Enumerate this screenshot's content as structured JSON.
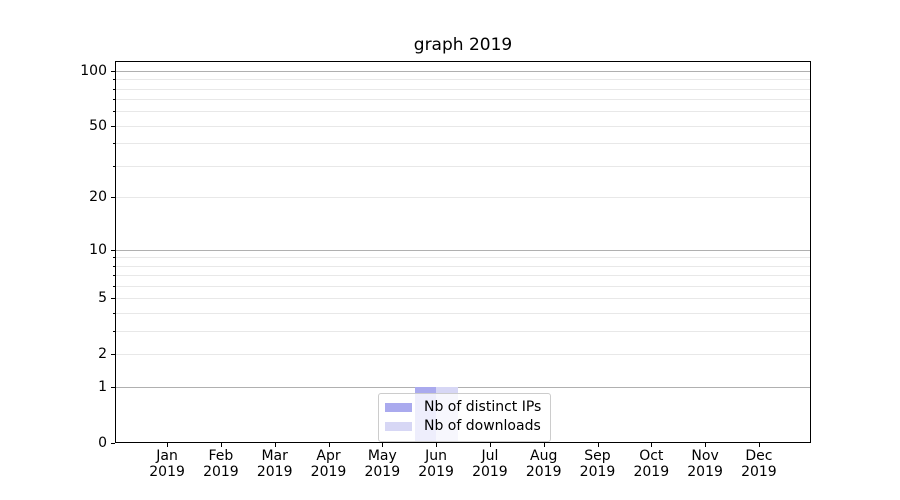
{
  "chart_data": {
    "type": "bar",
    "title": "graph 2019",
    "categories": [
      "Jan 2019",
      "Feb 2019",
      "Mar 2019",
      "Apr 2019",
      "May 2019",
      "Jun 2019",
      "Jul 2019",
      "Aug 2019",
      "Sep 2019",
      "Oct 2019",
      "Nov 2019",
      "Dec 2019"
    ],
    "series": [
      {
        "name": "Nb of distinct IPs",
        "color": "#aaaaee",
        "values": [
          0,
          0,
          0,
          0,
          0,
          1,
          0,
          0,
          0,
          0,
          0,
          0
        ]
      },
      {
        "name": "Nb of downloads",
        "color": "#d7d7f5",
        "values": [
          0,
          0,
          0,
          0,
          0,
          1,
          0,
          0,
          0,
          0,
          0,
          0
        ]
      }
    ],
    "xlabel": "",
    "ylabel": "",
    "yscale": "log1p",
    "ylim": [
      0,
      113
    ],
    "yticks": [
      0,
      1,
      2,
      5,
      10,
      20,
      50,
      100
    ],
    "grid": {
      "horizontal": true,
      "vertical": false,
      "major_lines": [
        1,
        10,
        100
      ],
      "minor_line_decades": [
        1,
        10
      ],
      "major_color": "#b0b0b0",
      "minor_color": "#e8e8e8"
    },
    "legend_position": "lower center",
    "colors": {
      "axis": "#000000",
      "background": "#ffffff",
      "text": "#000000"
    }
  }
}
